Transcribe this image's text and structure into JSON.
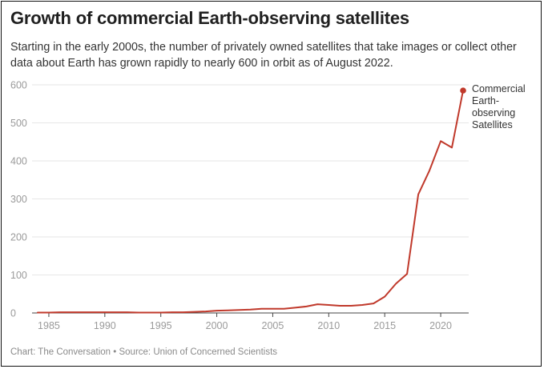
{
  "header": {
    "title": "Growth of commercial Earth-observing satellites",
    "subtitle": "Starting in the early 2000s, the number of privately owned satellites that take images or collect other data about Earth has grown rapidly to nearly 600 in orbit as of August 2022."
  },
  "footer": {
    "credit": "Chart: The Conversation • Source: Union of Concerned Scientists"
  },
  "colors": {
    "series": "#c0392b",
    "grid": "#e6e6e6",
    "axis": "#444444"
  },
  "chart_data": {
    "type": "line",
    "title": "Growth of commercial Earth-observing satellites",
    "subtitle": "Starting in the early 2000s, the number of privately owned satellites that take images or collect other data about Earth has grown rapidly to nearly 600 in orbit as of August 2022.",
    "xlabel": "",
    "ylabel": "",
    "xlim": [
      1983.5,
      2022.5
    ],
    "ylim": [
      0,
      600
    ],
    "xticks": [
      1985,
      1990,
      1995,
      2000,
      2005,
      2010,
      2015,
      2020
    ],
    "yticks": [
      0,
      100,
      200,
      300,
      400,
      500,
      600
    ],
    "grid": "horizontal",
    "legend": "end-of-line label",
    "series": [
      {
        "name": "Commercial Earth-observing Satellites",
        "label_lines": [
          "Commercial",
          "Earth-",
          "observing",
          "Satellites"
        ],
        "x": [
          1984,
          1985,
          1986,
          1987,
          1988,
          1989,
          1990,
          1991,
          1992,
          1993,
          1994,
          1995,
          1996,
          1997,
          1998,
          1999,
          2000,
          2001,
          2002,
          2003,
          2004,
          2005,
          2006,
          2007,
          2008,
          2009,
          2010,
          2011,
          2012,
          2013,
          2014,
          2015,
          2016,
          2017,
          2018,
          2019,
          2020,
          2021,
          2022
        ],
        "y": [
          1,
          1,
          2,
          2,
          2,
          2,
          2,
          2,
          2,
          1,
          1,
          1,
          2,
          2,
          3,
          4,
          6,
          7,
          8,
          9,
          11,
          11,
          11,
          14,
          17,
          23,
          21,
          19,
          19,
          21,
          25,
          43,
          77,
          103,
          312,
          375,
          452,
          435,
          585
        ]
      }
    ]
  }
}
